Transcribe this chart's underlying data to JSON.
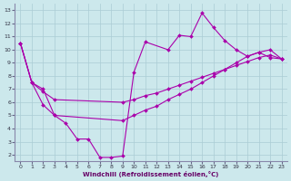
{
  "xlabel": "Windchill (Refroidissement éolien,°C)",
  "xlim": [
    -0.5,
    23.5
  ],
  "ylim": [
    1.5,
    13.5
  ],
  "xticks": [
    0,
    1,
    2,
    3,
    4,
    5,
    6,
    7,
    8,
    9,
    10,
    11,
    12,
    13,
    14,
    15,
    16,
    17,
    18,
    19,
    20,
    21,
    22,
    23
  ],
  "yticks": [
    2,
    3,
    4,
    5,
    6,
    7,
    8,
    9,
    10,
    11,
    12,
    13
  ],
  "background_color": "#cce8ec",
  "grid_color": "#aaccd4",
  "line_color": "#aa00aa",
  "curves": [
    {
      "x": [
        0,
        1,
        2,
        3,
        4,
        5,
        6,
        7,
        8,
        9,
        10,
        11,
        13,
        14,
        15,
        16,
        17,
        18,
        19,
        20,
        21,
        22,
        23
      ],
      "y": [
        10.5,
        7.5,
        7.0,
        5.0,
        4.4,
        3.2,
        3.2,
        1.8,
        1.8,
        1.9,
        8.3,
        10.6,
        10.0,
        11.1,
        11.0,
        12.8,
        11.7,
        10.7,
        10.0,
        9.5,
        9.8,
        9.4,
        9.3
      ]
    },
    {
      "x": [
        0,
        1,
        2,
        3,
        9,
        10,
        11,
        12,
        13,
        14,
        15,
        16,
        17,
        18,
        19,
        20,
        21,
        22,
        23
      ],
      "y": [
        10.5,
        7.5,
        6.8,
        6.2,
        6.0,
        6.2,
        6.5,
        6.7,
        7.0,
        7.3,
        7.6,
        7.9,
        8.2,
        8.5,
        8.8,
        9.1,
        9.4,
        9.6,
        9.3
      ]
    },
    {
      "x": [
        0,
        1,
        2,
        3,
        9,
        10,
        11,
        12,
        13,
        14,
        15,
        16,
        17,
        18,
        19,
        20,
        21,
        22,
        23
      ],
      "y": [
        10.5,
        7.5,
        5.8,
        5.0,
        4.6,
        5.0,
        5.4,
        5.7,
        6.2,
        6.6,
        7.0,
        7.5,
        8.0,
        8.5,
        9.0,
        9.5,
        9.8,
        10.0,
        9.3
      ]
    }
  ]
}
